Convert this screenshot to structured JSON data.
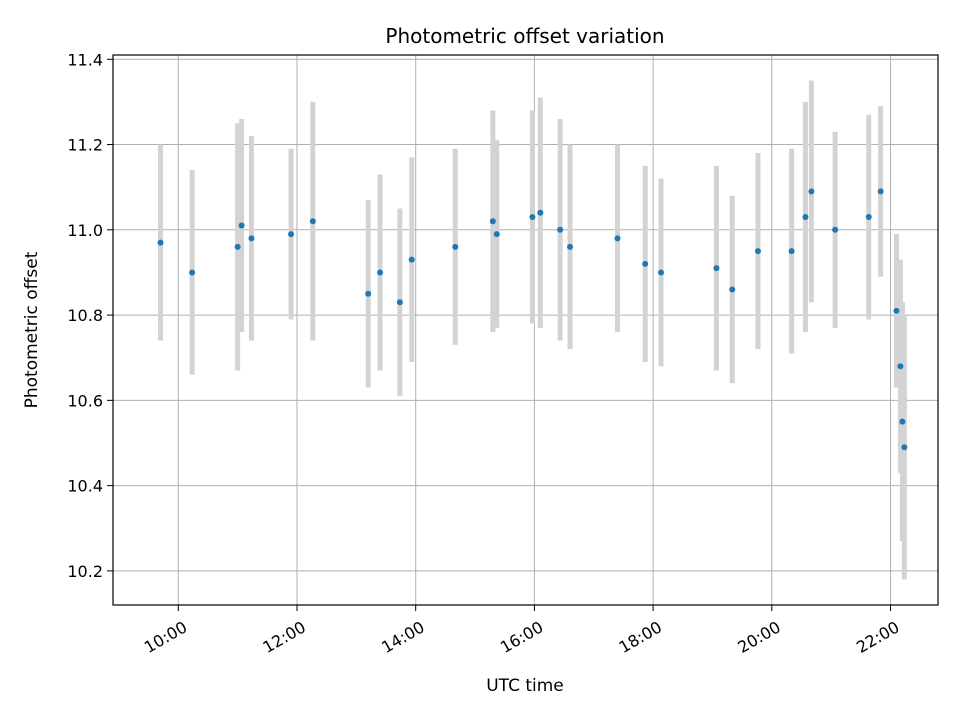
{
  "chart_data": {
    "type": "scatter",
    "title": "Photometric offset variation",
    "xlabel": "UTC time",
    "ylabel": "Photometric offset",
    "xlim": [
      "08:54",
      "22:48"
    ],
    "ylim": [
      10.12,
      11.41
    ],
    "x_ticks": [
      "10:00",
      "12:00",
      "14:00",
      "16:00",
      "18:00",
      "20:00",
      "22:00"
    ],
    "y_ticks": [
      "10.2",
      "10.4",
      "10.6",
      "10.8",
      "11.0",
      "11.2",
      "11.4"
    ],
    "grid": true,
    "colors": {
      "point": "#1f77b4",
      "errorbar": "#d3d3d3",
      "grid": "#b0b0b0"
    },
    "series": [
      {
        "x": [
          "09:42",
          "10:14",
          "11:00",
          "11:04",
          "11:14",
          "11:54",
          "12:16",
          "13:12",
          "13:24",
          "13:44",
          "13:56",
          "14:40",
          "15:18",
          "15:22",
          "15:58",
          "16:06",
          "16:26",
          "16:36",
          "17:24",
          "17:52",
          "18:08",
          "19:04",
          "19:20",
          "19:46",
          "20:20",
          "20:34",
          "20:40",
          "21:04",
          "21:38",
          "21:50",
          "22:06",
          "22:10",
          "22:12",
          "22:14"
        ],
        "y": [
          10.97,
          10.9,
          10.96,
          11.01,
          10.98,
          10.99,
          11.02,
          10.85,
          10.9,
          10.83,
          10.93,
          10.96,
          11.02,
          10.99,
          11.03,
          11.04,
          11.0,
          10.96,
          10.98,
          10.92,
          10.9,
          10.91,
          10.86,
          10.95,
          10.95,
          11.03,
          11.09,
          11.0,
          11.03,
          11.09,
          10.81,
          10.68,
          10.55,
          10.49
        ],
        "err": [
          0.23,
          0.24,
          0.29,
          0.25,
          0.24,
          0.2,
          0.28,
          0.22,
          0.23,
          0.22,
          0.24,
          0.23,
          0.26,
          0.22,
          0.25,
          0.27,
          0.26,
          0.24,
          0.22,
          0.23,
          0.22,
          0.24,
          0.22,
          0.23,
          0.24,
          0.27,
          0.26,
          0.23,
          0.24,
          0.2,
          0.18,
          0.25,
          0.28,
          0.31
        ]
      }
    ]
  }
}
